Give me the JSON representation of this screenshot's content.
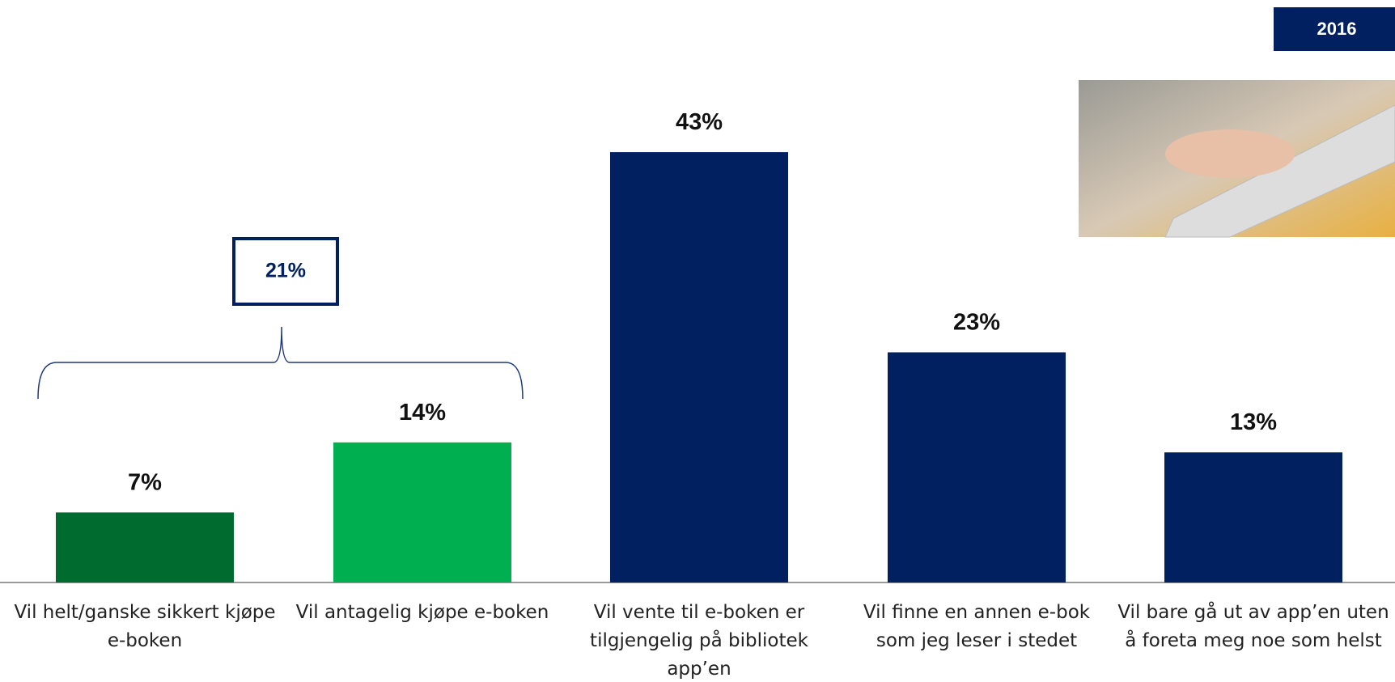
{
  "badge": "2016",
  "chart_data": {
    "type": "bar",
    "categories": [
      "Vil helt/ganske sikkert kjøpe e-boken",
      "Vil antagelig kjøpe e-boken",
      "Vil vente til e-boken er tilgjengelig på bibliotek app’en",
      "Vil finne en annen e-bok som jeg leser i stedet",
      "Vil bare gå ut av app’en uten å foreta meg noe som helst"
    ],
    "values": [
      7,
      14,
      43,
      23,
      13
    ],
    "value_labels": [
      "7%",
      "14%",
      "43%",
      "23%",
      "13%"
    ],
    "colors": [
      "#006b2e",
      "#00b050",
      "#002060",
      "#002060",
      "#002060"
    ],
    "annotation": {
      "value": 21,
      "label": "21%"
    }
  }
}
